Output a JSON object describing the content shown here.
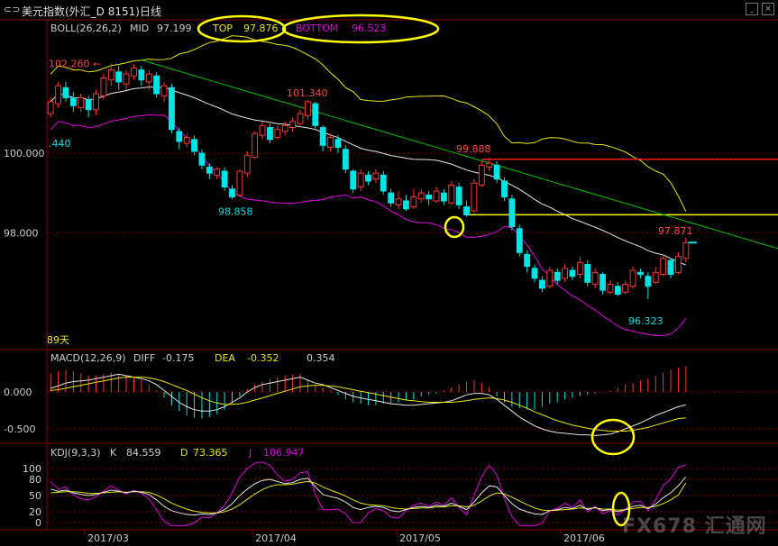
{
  "window": {
    "title": "美元指数(外汇_D 8151)日线",
    "minimize_glyph": "_",
    "close_glyph": "×"
  },
  "main_panel": {
    "boll_label": "BOLL(26,26,2)",
    "mid_label": "MID",
    "mid_value": "97.199",
    "top_label": "TOP",
    "top_value": "97.876",
    "bottom_label": "BOTTOM",
    "bottom_value": "96.523",
    "period_label": "89天",
    "y_ticks": [
      "100.000",
      "98.000"
    ]
  },
  "macd_panel": {
    "label": "MACD(12,26,9)",
    "diff_label": "DIFF",
    "diff_value": "-0.175",
    "dea_label": "DEA",
    "dea_value": "-0.352",
    "macd_value": "0.354",
    "y_ticks": [
      "0.000",
      "-0.500"
    ]
  },
  "kdj_panel": {
    "label": "KDJ(9,3,3)",
    "k_label": "K",
    "k_value": "84.559",
    "d_label": "D",
    "d_value": "73.365",
    "j_label": "J",
    "j_value": "106.947",
    "y_ticks": [
      "100",
      "80",
      "50",
      "20",
      "0"
    ]
  },
  "x_axis": [
    "2017/03",
    "2017/04",
    "2017/05",
    "2017/06"
  ],
  "watermark": "FX678 汇通网",
  "colors": {
    "up": "#ff3333",
    "down": "#00e5e5",
    "mid": "#e6e6e6",
    "upper": "#e6e600",
    "lower": "#e600e6",
    "trend": "#00c000",
    "grid": "#8b0000",
    "highlight": "#ffff00"
  },
  "chart_data": {
    "type": "candlestick",
    "price_range": [
      95.1,
      103.0
    ],
    "annotations": [
      {
        "label": "102.260",
        "value": 102.26
      },
      {
        "label": "101.340",
        "value": 101.34
      },
      {
        "label": "99.888",
        "value": 99.888
      },
      {
        "label": "98.858",
        "value": 98.858
      },
      {
        "label": "97.871",
        "value": 97.871
      },
      {
        "label": "96.323",
        "value": 96.323
      },
      {
        "label": ".440",
        "value": 100.44
      }
    ],
    "horizontal_lines": [
      {
        "name": "resistance",
        "value": 99.85
      },
      {
        "name": "support",
        "value": 98.45
      }
    ],
    "candles": [
      [
        101.0,
        101.3,
        100.9,
        101.4
      ],
      [
        101.25,
        101.7,
        101.15,
        101.8
      ],
      [
        101.65,
        101.4,
        101.3,
        101.8
      ],
      [
        101.4,
        101.2,
        101.05,
        101.55
      ],
      [
        101.15,
        101.4,
        101.05,
        101.5
      ],
      [
        101.35,
        101.1,
        100.9,
        101.45
      ],
      [
        101.1,
        101.5,
        100.95,
        101.6
      ],
      [
        101.45,
        101.9,
        101.35,
        102.0
      ],
      [
        101.85,
        102.1,
        101.7,
        102.26
      ],
      [
        102.05,
        101.8,
        101.6,
        102.2
      ],
      [
        101.75,
        102.0,
        101.6,
        102.1
      ],
      [
        101.95,
        102.15,
        101.85,
        102.25
      ],
      [
        102.1,
        101.85,
        101.7,
        102.2
      ],
      [
        101.8,
        102.0,
        101.6,
        102.1
      ],
      [
        101.95,
        101.5,
        101.4,
        102.05
      ],
      [
        101.45,
        101.7,
        101.3,
        101.8
      ],
      [
        101.65,
        100.6,
        100.5,
        101.75
      ],
      [
        100.55,
        100.3,
        100.1,
        100.65
      ],
      [
        100.25,
        100.4,
        100.15,
        100.5
      ],
      [
        100.35,
        100.05,
        99.95,
        100.45
      ],
      [
        100.0,
        99.7,
        99.6,
        100.1
      ],
      [
        99.65,
        99.5,
        99.35,
        99.75
      ],
      [
        99.45,
        99.6,
        99.35,
        99.65
      ],
      [
        99.55,
        99.15,
        99.05,
        99.65
      ],
      [
        99.1,
        98.9,
        98.85,
        99.2
      ],
      [
        98.95,
        99.55,
        98.9,
        99.6
      ],
      [
        99.5,
        99.95,
        99.4,
        100.05
      ],
      [
        99.9,
        100.5,
        99.85,
        100.55
      ],
      [
        100.45,
        100.7,
        100.35,
        100.8
      ],
      [
        100.65,
        100.35,
        100.25,
        100.75
      ],
      [
        100.4,
        100.6,
        100.35,
        100.7
      ],
      [
        100.55,
        100.7,
        100.45,
        100.8
      ],
      [
        100.65,
        100.8,
        100.55,
        100.9
      ],
      [
        100.75,
        101.0,
        100.7,
        101.1
      ],
      [
        100.95,
        101.3,
        100.85,
        101.34
      ],
      [
        101.25,
        100.7,
        100.6,
        101.3
      ],
      [
        100.65,
        100.2,
        100.05,
        100.7
      ],
      [
        100.15,
        100.4,
        100.05,
        100.5
      ],
      [
        100.35,
        100.15,
        100.0,
        100.45
      ],
      [
        100.1,
        99.6,
        99.5,
        100.2
      ],
      [
        99.55,
        99.1,
        99.0,
        99.6
      ],
      [
        99.15,
        99.5,
        99.05,
        99.6
      ],
      [
        99.45,
        99.3,
        99.2,
        99.55
      ],
      [
        99.35,
        99.5,
        99.25,
        99.6
      ],
      [
        99.45,
        99.05,
        98.95,
        99.55
      ],
      [
        99.0,
        98.75,
        98.65,
        99.1
      ],
      [
        98.7,
        98.85,
        98.6,
        99.05
      ],
      [
        98.8,
        98.6,
        98.55,
        98.95
      ],
      [
        98.65,
        98.9,
        98.6,
        99.1
      ],
      [
        98.85,
        99.0,
        98.75,
        99.1
      ],
      [
        98.95,
        98.85,
        98.7,
        99.05
      ],
      [
        98.8,
        99.05,
        98.75,
        99.15
      ],
      [
        99.0,
        98.8,
        98.7,
        99.1
      ],
      [
        98.75,
        99.2,
        98.7,
        99.3
      ],
      [
        99.15,
        98.7,
        98.6,
        99.25
      ],
      [
        98.65,
        98.45,
        98.4,
        98.8
      ],
      [
        98.55,
        99.25,
        98.5,
        99.35
      ],
      [
        99.2,
        99.7,
        99.15,
        99.8
      ],
      [
        99.65,
        99.75,
        99.55,
        99.888
      ],
      [
        99.7,
        99.35,
        99.25,
        99.8
      ],
      [
        99.3,
        98.9,
        98.8,
        99.4
      ],
      [
        98.85,
        98.15,
        98.05,
        98.95
      ],
      [
        98.1,
        97.5,
        97.4,
        98.2
      ],
      [
        97.45,
        97.15,
        97.0,
        97.55
      ],
      [
        97.1,
        96.85,
        96.75,
        97.2
      ],
      [
        96.8,
        96.6,
        96.5,
        96.9
      ],
      [
        96.65,
        97.05,
        96.6,
        97.15
      ],
      [
        97.0,
        96.8,
        96.7,
        97.1
      ],
      [
        96.85,
        97.1,
        96.75,
        97.2
      ],
      [
        97.05,
        96.9,
        96.8,
        97.15
      ],
      [
        96.95,
        97.25,
        96.85,
        97.4
      ],
      [
        97.2,
        96.75,
        96.65,
        97.3
      ],
      [
        96.7,
        97.0,
        96.6,
        97.1
      ],
      [
        96.95,
        96.55,
        96.45,
        97.0
      ],
      [
        96.5,
        96.7,
        96.45,
        96.8
      ],
      [
        96.65,
        96.45,
        96.4,
        96.75
      ],
      [
        96.5,
        96.7,
        96.45,
        96.8
      ],
      [
        96.65,
        97.05,
        96.6,
        97.15
      ],
      [
        97.0,
        96.95,
        96.85,
        97.1
      ],
      [
        96.9,
        96.65,
        96.323,
        97.0
      ],
      [
        96.75,
        97.0,
        96.7,
        97.15
      ],
      [
        96.95,
        97.35,
        96.9,
        97.45
      ],
      [
        97.3,
        96.95,
        96.85,
        97.35
      ],
      [
        97.0,
        97.4,
        96.95,
        97.5
      ],
      [
        97.35,
        97.75,
        97.25,
        97.871
      ]
    ],
    "macd_hist": [
      0.25,
      0.28,
      0.3,
      0.28,
      0.25,
      0.22,
      0.22,
      0.24,
      0.26,
      0.25,
      0.22,
      0.2,
      0.16,
      0.1,
      0.02,
      -0.08,
      -0.18,
      -0.26,
      -0.32,
      -0.35,
      -0.36,
      -0.34,
      -0.3,
      -0.24,
      -0.16,
      -0.06,
      0.04,
      0.1,
      0.14,
      0.18,
      0.2,
      0.22,
      0.24,
      0.25,
      0.16,
      0.1,
      0.06,
      0.02,
      -0.04,
      -0.1,
      -0.14,
      -0.16,
      -0.18,
      -0.18,
      -0.16,
      -0.16,
      -0.14,
      -0.12,
      -0.1,
      -0.06,
      -0.04,
      -0.02,
      0.02,
      0.06,
      0.1,
      0.14,
      0.16,
      0.12,
      0.06,
      -0.06,
      -0.14,
      -0.2,
      -0.22,
      -0.24,
      -0.24,
      -0.2,
      -0.16,
      -0.14,
      -0.1,
      -0.08,
      -0.06,
      -0.04,
      -0.02,
      0.0,
      0.02,
      0.06,
      0.1,
      0.12,
      0.15,
      0.18,
      0.22,
      0.26,
      0.3,
      0.33,
      0.35
    ],
    "diff": [
      0.05,
      0.08,
      0.12,
      0.14,
      0.15,
      0.16,
      0.18,
      0.2,
      0.22,
      0.24,
      0.22,
      0.2,
      0.18,
      0.15,
      0.1,
      0.02,
      -0.06,
      -0.14,
      -0.2,
      -0.24,
      -0.26,
      -0.26,
      -0.24,
      -0.2,
      -0.14,
      -0.08,
      0.0,
      0.06,
      0.1,
      0.12,
      0.14,
      0.16,
      0.18,
      0.2,
      0.16,
      0.12,
      0.1,
      0.06,
      0.02,
      -0.02,
      -0.06,
      -0.08,
      -0.1,
      -0.12,
      -0.14,
      -0.16,
      -0.17,
      -0.18,
      -0.18,
      -0.17,
      -0.16,
      -0.15,
      -0.14,
      -0.12,
      -0.08,
      -0.04,
      -0.02,
      -0.02,
      -0.04,
      -0.1,
      -0.18,
      -0.26,
      -0.34,
      -0.4,
      -0.46,
      -0.5,
      -0.53,
      -0.55,
      -0.56,
      -0.57,
      -0.58,
      -0.58,
      -0.59,
      -0.58,
      -0.57,
      -0.54,
      -0.5,
      -0.46,
      -0.42,
      -0.37,
      -0.32,
      -0.28,
      -0.24,
      -0.2,
      -0.175
    ],
    "dea": [
      0.02,
      0.03,
      0.05,
      0.07,
      0.09,
      0.11,
      0.13,
      0.15,
      0.17,
      0.19,
      0.2,
      0.2,
      0.2,
      0.19,
      0.17,
      0.14,
      0.1,
      0.06,
      0.02,
      -0.03,
      -0.08,
      -0.12,
      -0.15,
      -0.17,
      -0.17,
      -0.16,
      -0.14,
      -0.11,
      -0.08,
      -0.05,
      -0.02,
      0.01,
      0.04,
      0.07,
      0.08,
      0.09,
      0.09,
      0.08,
      0.07,
      0.05,
      0.03,
      0.01,
      -0.01,
      -0.03,
      -0.05,
      -0.07,
      -0.09,
      -0.11,
      -0.12,
      -0.13,
      -0.14,
      -0.14,
      -0.14,
      -0.14,
      -0.13,
      -0.12,
      -0.1,
      -0.09,
      -0.08,
      -0.09,
      -0.11,
      -0.14,
      -0.18,
      -0.22,
      -0.27,
      -0.31,
      -0.35,
      -0.39,
      -0.42,
      -0.45,
      -0.47,
      -0.49,
      -0.51,
      -0.52,
      -0.53,
      -0.53,
      -0.53,
      -0.52,
      -0.5,
      -0.48,
      -0.45,
      -0.42,
      -0.39,
      -0.36,
      -0.352
    ],
    "kdj_k": [
      62,
      58,
      60,
      55,
      52,
      50,
      52,
      56,
      60,
      58,
      55,
      58,
      56,
      52,
      42,
      30,
      22,
      18,
      15,
      14,
      16,
      15,
      18,
      24,
      35,
      50,
      62,
      72,
      78,
      80,
      76,
      72,
      74,
      80,
      82,
      66,
      52,
      48,
      45,
      38,
      28,
      24,
      28,
      30,
      28,
      22,
      20,
      24,
      28,
      30,
      28,
      32,
      30,
      36,
      30,
      24,
      38,
      55,
      68,
      66,
      50,
      35,
      25,
      20,
      16,
      15,
      22,
      24,
      28,
      26,
      32,
      24,
      28,
      22,
      24,
      20,
      24,
      30,
      32,
      26,
      34,
      46,
      55,
      68,
      84.559
    ],
    "kdj_d": [
      55,
      56,
      57,
      57,
      56,
      54,
      54,
      55,
      56,
      57,
      56,
      57,
      57,
      56,
      51,
      44,
      36,
      30,
      25,
      21,
      19,
      18,
      18,
      20,
      25,
      33,
      43,
      53,
      61,
      67,
      70,
      70,
      71,
      74,
      76,
      73,
      66,
      60,
      55,
      49,
      42,
      36,
      33,
      32,
      31,
      28,
      26,
      25,
      26,
      27,
      27,
      29,
      29,
      31,
      31,
      29,
      32,
      40,
      49,
      55,
      53,
      47,
      40,
      33,
      27,
      23,
      22,
      23,
      24,
      25,
      27,
      26,
      27,
      25,
      25,
      23,
      24,
      26,
      28,
      28,
      30,
      35,
      42,
      51,
      73.365
    ],
    "kdj_j": [
      76,
      62,
      66,
      51,
      44,
      42,
      48,
      58,
      68,
      60,
      53,
      60,
      54,
      44,
      24,
      2,
      -6,
      -6,
      -5,
      0,
      10,
      9,
      18,
      32,
      55,
      84,
      100,
      110,
      112,
      106,
      88,
      76,
      80,
      92,
      94,
      52,
      24,
      24,
      25,
      16,
      0,
      0,
      18,
      26,
      22,
      10,
      8,
      22,
      32,
      36,
      30,
      38,
      32,
      46,
      28,
      14,
      50,
      85,
      106,
      88,
      44,
      11,
      -5,
      -6,
      -6,
      -1,
      22,
      26,
      36,
      28,
      42,
      20,
      30,
      16,
      22,
      14,
      24,
      38,
      40,
      22,
      42,
      68,
      81,
      102,
      106.947
    ]
  }
}
